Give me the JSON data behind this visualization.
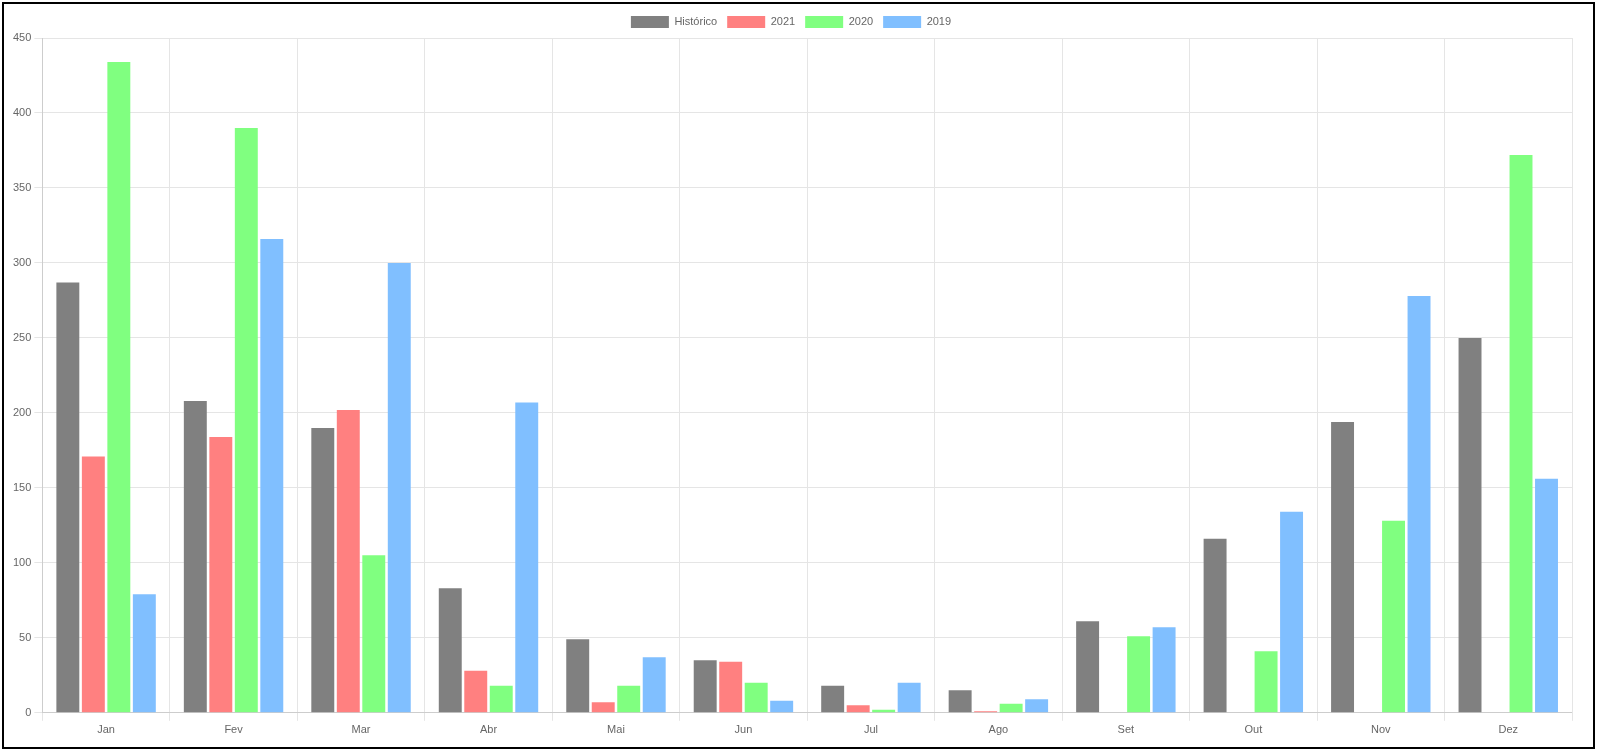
{
  "chart_data": {
    "type": "bar",
    "categories": [
      "Jan",
      "Fev",
      "Mar",
      "Abr",
      "Mai",
      "Jun",
      "Jul",
      "Ago",
      "Set",
      "Out",
      "Nov",
      "Dez"
    ],
    "series": [
      {
        "name": "Histórico",
        "color": "#808080",
        "values": [
          287,
          208,
          190,
          83,
          49,
          35,
          18,
          15,
          61,
          116,
          194,
          250
        ]
      },
      {
        "name": "2021",
        "color": "#ff8080",
        "values": [
          171,
          184,
          202,
          28,
          7,
          34,
          5,
          1,
          null,
          null,
          null,
          null
        ]
      },
      {
        "name": "2020",
        "color": "#80ff80",
        "values": [
          434,
          390,
          105,
          18,
          18,
          20,
          2,
          6,
          51,
          41,
          128,
          372
        ]
      },
      {
        "name": "2019",
        "color": "#80bfff",
        "values": [
          79,
          316,
          300,
          207,
          37,
          8,
          20,
          9,
          57,
          134,
          278,
          156
        ]
      }
    ],
    "ylim": [
      0,
      450
    ],
    "yticks": [
      0,
      50,
      100,
      150,
      200,
      250,
      300,
      350,
      400,
      450
    ],
    "grid": true,
    "legend": "top"
  }
}
